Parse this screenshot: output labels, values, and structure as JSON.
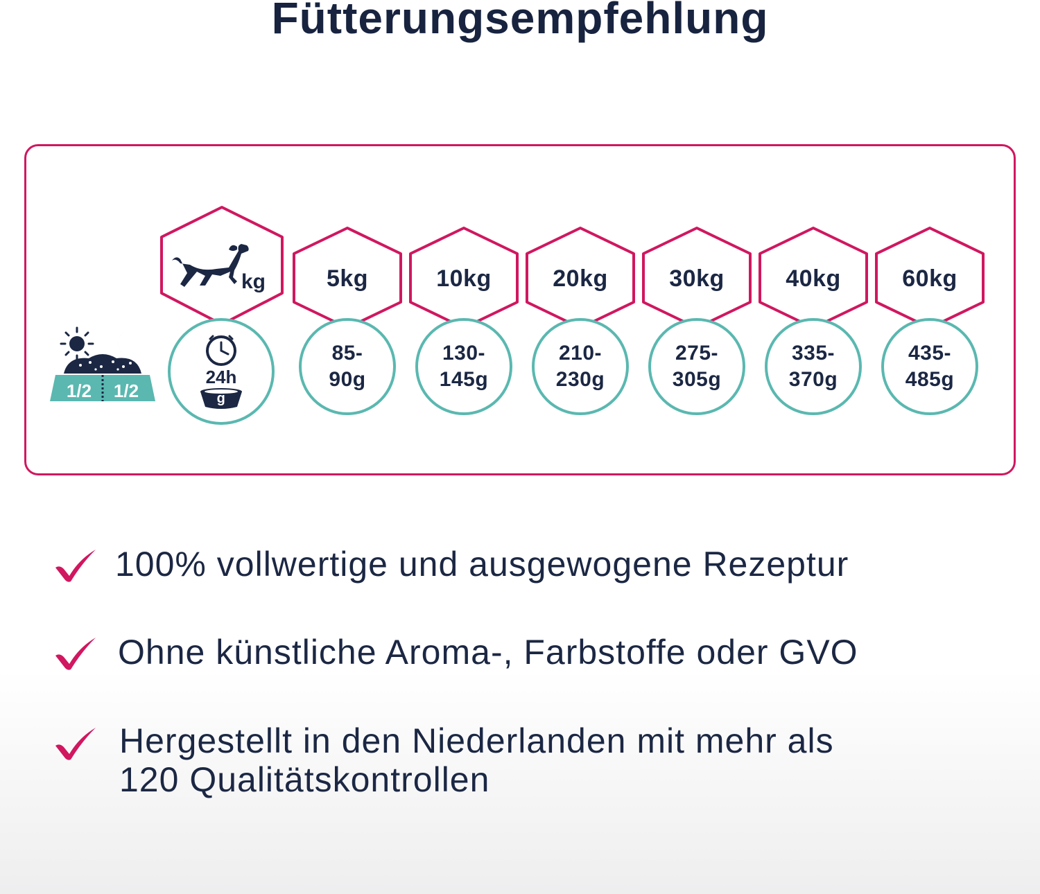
{
  "title": "Fütterungsempfehlung",
  "colors": {
    "navy": "#1b2743",
    "magenta": "#d0175f",
    "teal": "#5ab8b0"
  },
  "legend": {
    "icons": [
      "sun-icon",
      "moon-icon",
      "food-bowl-icon"
    ],
    "portion_left": "1/2",
    "portion_right": "1/2"
  },
  "header_column": {
    "icons": [
      "dog-icon",
      "clock-icon",
      "bowl-icon"
    ],
    "weight_unit": "kg",
    "duration": "24h",
    "amount_unit": "g"
  },
  "feeding_table": [
    {
      "weight": "5kg",
      "amount_line1": "85-",
      "amount_line2": "90g"
    },
    {
      "weight": "10kg",
      "amount_line1": "130-",
      "amount_line2": "145g"
    },
    {
      "weight": "20kg",
      "amount_line1": "210-",
      "amount_line2": "230g"
    },
    {
      "weight": "30kg",
      "amount_line1": "275-",
      "amount_line2": "305g"
    },
    {
      "weight": "40kg",
      "amount_line1": "335-",
      "amount_line2": "370g"
    },
    {
      "weight": "60kg",
      "amount_line1": "435-",
      "amount_line2": "485g"
    }
  ],
  "benefits": [
    {
      "icon": "checkmark-icon",
      "lines": [
        "100% vollwertige und ausgewogene Rezeptur"
      ]
    },
    {
      "icon": "checkmark-icon",
      "lines": [
        "Ohne künstliche Aroma-, Farbstoffe oder GVO"
      ]
    },
    {
      "icon": "checkmark-icon",
      "lines": [
        "Hergestellt in den Niederlanden mit mehr als",
        "120 Qualitätskontrollen"
      ]
    }
  ]
}
